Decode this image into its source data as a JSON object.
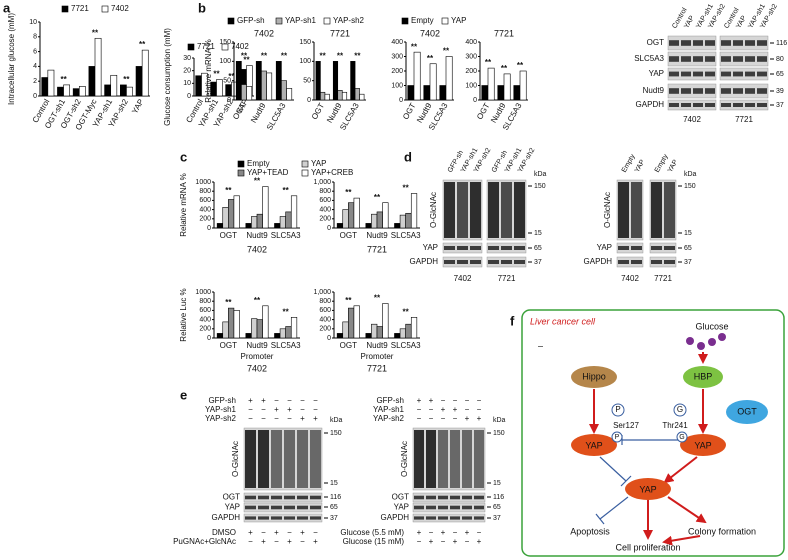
{
  "panel_labels": [
    "a",
    "b",
    "c",
    "d",
    "e",
    "f"
  ],
  "chart_data": [
    {
      "type": "bar",
      "ylabel": "Intracellular glucose (mM)",
      "categories": [
        "Control",
        "OGT-sh1",
        "OGT-sh2",
        "OGT-Myc",
        "YAP-sh1",
        "YAP-sh2",
        "YAP"
      ],
      "series": [
        {
          "name": "7721",
          "color": "#000000",
          "values": [
            2.5,
            1.2,
            1.0,
            4.0,
            1.5,
            1.5,
            4.0
          ]
        },
        {
          "name": "7402",
          "color": "#ffffff",
          "values": [
            3.5,
            1.5,
            1.3,
            7.8,
            2.8,
            1.2,
            6.2
          ]
        }
      ],
      "ylim": [
        0,
        10
      ],
      "yticks": [
        0,
        2,
        4,
        6,
        8,
        10
      ],
      "annotations": [
        null,
        "**",
        null,
        "**",
        null,
        "**",
        "**"
      ]
    },
    {
      "type": "bar",
      "ylabel": "Glucose consumption (mM)",
      "categories": [
        "Control",
        "YAP-sh1",
        "YAP-sh2",
        "YAP"
      ],
      "series": [
        {
          "name": "7721",
          "color": "#000000",
          "values": [
            16,
            11,
            9,
            21
          ]
        },
        {
          "name": "7402",
          "color": "#ffffff",
          "values": [
            18,
            13,
            11,
            24
          ]
        }
      ],
      "ylim": [
        0,
        30
      ],
      "yticks": [
        0,
        10,
        20,
        30
      ],
      "annotations": [
        null,
        "**",
        "**",
        "**"
      ]
    },
    {
      "type": "bar",
      "title": "7402",
      "ylabel": "Relative mRNA %",
      "categories": [
        "OGT",
        "Nudt9",
        "SLC5A3"
      ],
      "series": [
        {
          "name": "GFP-sh",
          "color": "#000000",
          "values": [
            100,
            100,
            100
          ]
        },
        {
          "name": "YAP-sh1",
          "color": "#b0b0b0",
          "values": [
            40,
            75,
            50
          ]
        },
        {
          "name": "YAP-sh2",
          "color": "#ffffff",
          "values": [
            35,
            70,
            30
          ]
        }
      ],
      "ylim": [
        0,
        150
      ],
      "yticks": [
        0,
        50,
        100,
        150
      ],
      "annotations": [
        "**",
        "**",
        "**"
      ]
    },
    {
      "type": "bar",
      "title": "7721",
      "categories": [
        "OGT",
        "Nudt9",
        "SLC5A3"
      ],
      "series": [
        {
          "color": "#000000",
          "values": [
            100,
            100,
            100
          ]
        },
        {
          "color": "#b0b0b0",
          "values": [
            20,
            25,
            30
          ]
        },
        {
          "color": "#ffffff",
          "values": [
            15,
            20,
            15
          ]
        }
      ],
      "ylim": [
        0,
        150
      ],
      "yticks": [
        0,
        50,
        100,
        150
      ],
      "annotations": [
        "**",
        "**",
        "**"
      ]
    },
    {
      "type": "bar",
      "title": "7402",
      "categories": [
        "OGT",
        "Nudt9",
        "SLC5A3"
      ],
      "series": [
        {
          "name": "Empty",
          "color": "#000000",
          "values": [
            100,
            100,
            100
          ]
        },
        {
          "name": "YAP",
          "color": "#ffffff",
          "values": [
            330,
            250,
            300
          ]
        }
      ],
      "ylim": [
        0,
        400
      ],
      "yticks": [
        0,
        100,
        200,
        300,
        400
      ],
      "annotations": [
        "**",
        "**",
        "**"
      ]
    },
    {
      "type": "bar",
      "title": "7721",
      "categories": [
        "OGT",
        "Nudt9",
        "SLC5A3"
      ],
      "series": [
        {
          "color": "#000000",
          "values": [
            100,
            100,
            100
          ]
        },
        {
          "color": "#ffffff",
          "values": [
            220,
            180,
            200
          ]
        }
      ],
      "ylim": [
        0,
        400
      ],
      "yticks": [
        0,
        100,
        200,
        300,
        400
      ],
      "annotations": [
        "**",
        "**",
        "**"
      ]
    },
    {
      "type": "bar",
      "title": "7402",
      "ylabel": "Relative mRNA %",
      "categories": [
        "OGT",
        "Nudt9",
        "SLC5A3"
      ],
      "series": [
        {
          "name": "Empty",
          "color": "#000000",
          "values": [
            100,
            100,
            100
          ]
        },
        {
          "name": "YAP",
          "color": "#d0d0d0",
          "values": [
            450,
            250,
            250
          ]
        },
        {
          "name": "YAP+TEAD",
          "color": "#888888",
          "values": [
            620,
            300,
            350
          ]
        },
        {
          "name": "YAP+CREB",
          "color": "#ffffff",
          "values": [
            700,
            900,
            700
          ]
        }
      ],
      "ylim": [
        0,
        1000
      ],
      "yticks": [
        0,
        200,
        400,
        600,
        800,
        1000
      ],
      "annotations": [
        "**",
        "**",
        "**"
      ]
    },
    {
      "type": "bar",
      "title": "7721",
      "categories": [
        "OGT",
        "Nudt9",
        "SLC5A3"
      ],
      "series": [
        {
          "color": "#000000",
          "values": [
            100,
            100,
            100
          ]
        },
        {
          "color": "#d0d0d0",
          "values": [
            400,
            300,
            280
          ]
        },
        {
          "color": "#888888",
          "values": [
            550,
            350,
            320
          ]
        },
        {
          "color": "#ffffff",
          "values": [
            650,
            550,
            750
          ]
        }
      ],
      "ylim": [
        0,
        1000
      ],
      "yticks": [
        0,
        200,
        400,
        600,
        800,
        {
          "value": 1000,
          "label": "1,000"
        }
      ],
      "annotations": [
        "**",
        "**",
        "**"
      ]
    },
    {
      "type": "bar",
      "title": "7402",
      "xlabel": "Promoter",
      "ylabel": "Relative Luc %",
      "categories": [
        "OGT",
        "Nudt9",
        "SLC5A3"
      ],
      "series": [
        {
          "color": "#000000",
          "values": [
            100,
            100,
            100
          ]
        },
        {
          "color": "#d0d0d0",
          "values": [
            350,
            420,
            200
          ]
        },
        {
          "color": "#888888",
          "values": [
            650,
            400,
            250
          ]
        },
        {
          "color": "#ffffff",
          "values": [
            600,
            700,
            450
          ]
        }
      ],
      "ylim": [
        0,
        1000
      ],
      "yticks": [
        0,
        200,
        400,
        600,
        800,
        1000
      ],
      "annotations": [
        "**",
        "**",
        "**"
      ]
    },
    {
      "type": "bar",
      "title": "7721",
      "xlabel": "Promoter",
      "categories": [
        "OGT",
        "Nudt9",
        "SLC5A3"
      ],
      "series": [
        {
          "color": "#000000",
          "values": [
            100,
            100,
            100
          ]
        },
        {
          "color": "#d0d0d0",
          "values": [
            350,
            300,
            200
          ]
        },
        {
          "color": "#888888",
          "values": [
            650,
            250,
            300
          ]
        },
        {
          "color": "#ffffff",
          "values": [
            700,
            750,
            450
          ]
        }
      ],
      "ylim": [
        0,
        1000
      ],
      "yticks": [
        0,
        200,
        400,
        600,
        800,
        {
          "value": 1000,
          "label": "1,000"
        }
      ],
      "annotations": [
        "**",
        "**",
        "**"
      ]
    }
  ],
  "blots": {
    "b": {
      "lanes": [
        "Control",
        "YAP",
        "YAP-sh1",
        "YAP-sh2"
      ],
      "rows": [
        "OGT",
        "SLC5A3",
        "YAP",
        "Nudt9",
        "GAPDH"
      ],
      "kda": [
        116,
        80,
        65,
        39,
        37
      ],
      "cells": [
        "7402",
        "7721"
      ]
    },
    "d_left": {
      "lanes": [
        "GFP-sh",
        "YAP-sh1",
        "YAP-sh2"
      ],
      "rows": [
        "O-GlcNAc",
        "YAP",
        "GAPDH"
      ],
      "kda_header": "kDa",
      "kda": [
        150,
        15,
        65,
        37
      ],
      "cells": [
        "7402",
        "7721"
      ]
    },
    "d_right": {
      "lanes": [
        "Empty",
        "YAP"
      ],
      "rows": [
        "O-GlcNAc",
        "YAP",
        "GAPDH"
      ],
      "kda_header": "kDa",
      "kda": [
        150,
        15,
        65,
        37
      ],
      "cells": [
        "7402",
        "7721"
      ]
    },
    "e_left": {
      "top_conditions": [
        {
          "label": "GFP-sh",
          "signs": [
            "+",
            "+",
            "−",
            "−",
            "−",
            "−"
          ]
        },
        {
          "label": "YAP-sh1",
          "signs": [
            "−",
            "−",
            "+",
            "+",
            "−",
            "−"
          ]
        },
        {
          "label": "YAP-sh2",
          "signs": [
            "−",
            "−",
            "−",
            "−",
            "+",
            "+"
          ]
        }
      ],
      "rows": [
        "O-GlcNAc",
        "OGT",
        "YAP",
        "GAPDH"
      ],
      "kda_header": "kDa",
      "kda": [
        150,
        15,
        116,
        65,
        37
      ],
      "bottom_conditions": [
        {
          "label": "DMSO",
          "signs": [
            "+",
            "−",
            "+",
            "−",
            "+",
            "−"
          ]
        },
        {
          "label": "PuGNAc+GlcNAc",
          "signs": [
            "−",
            "+",
            "−",
            "+",
            "−",
            "+"
          ]
        }
      ]
    },
    "e_right": {
      "top_conditions": [
        {
          "label": "GFP-sh",
          "signs": [
            "+",
            "+",
            "−",
            "−",
            "−",
            "−"
          ]
        },
        {
          "label": "YAP-sh1",
          "signs": [
            "−",
            "−",
            "+",
            "+",
            "−",
            "−"
          ]
        },
        {
          "label": "YAP-sh2",
          "signs": [
            "−",
            "−",
            "−",
            "−",
            "+",
            "+"
          ]
        }
      ],
      "rows": [
        "O-GlcNAc",
        "OGT",
        "YAP",
        "GAPDH"
      ],
      "kda_header": "kDa",
      "kda": [
        150,
        15,
        116,
        65,
        37
      ],
      "bottom_conditions": [
        {
          "label": "Glucose (5.5 mM)",
          "signs": [
            "+",
            "−",
            "+",
            "−",
            "+",
            "−"
          ]
        },
        {
          "label": "Glucose (15 mM)",
          "signs": [
            "−",
            "+",
            "−",
            "+",
            "−",
            "+"
          ]
        }
      ]
    }
  },
  "diagram": {
    "title": "Liver cancer cell",
    "mark": "–",
    "glucose": "Glucose",
    "hippo": "Hippo",
    "hbp": "HBP",
    "ogt": "OGT",
    "yap": [
      "YAP",
      "YAP",
      "YAP"
    ],
    "modifications": [
      "P",
      "G",
      "P",
      "G"
    ],
    "sites": [
      "Ser127",
      "Thr241"
    ],
    "outcomes": [
      "Apoptosis",
      "Colony formation",
      "Cell proliferation"
    ]
  }
}
